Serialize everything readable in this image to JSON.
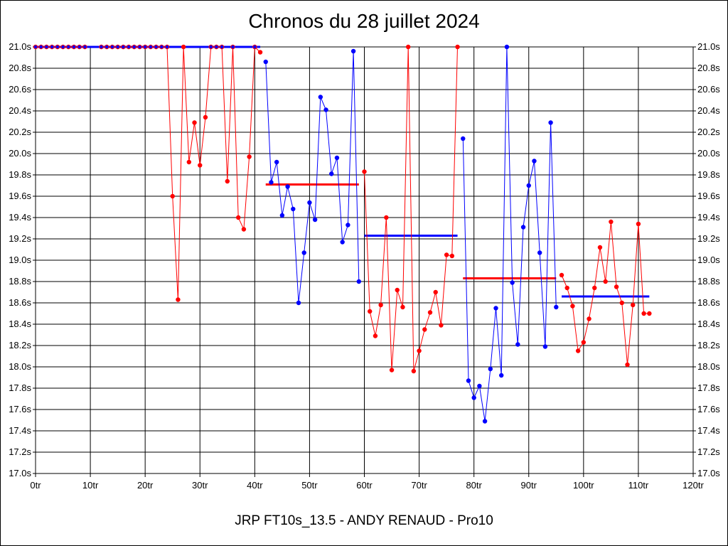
{
  "title": "Chronos du 28 juillet 2024",
  "subtitle": "JRP FT10s_13.5 - ANDY RENAUD - Pro10",
  "colors": {
    "series_a": "#ff0000",
    "series_b": "#0000ff",
    "grid": "#000000",
    "background": "#ffffff"
  },
  "chart_data": {
    "type": "line",
    "xlim": [
      0,
      120
    ],
    "ylim": [
      17.0,
      21.0
    ],
    "grid": true,
    "x_ticks": [
      0,
      10,
      20,
      30,
      40,
      50,
      60,
      70,
      80,
      90,
      100,
      110,
      120
    ],
    "x_tick_labels": [
      "0tr",
      "10tr",
      "20tr",
      "30tr",
      "40tr",
      "50tr",
      "60tr",
      "70tr",
      "80tr",
      "90tr",
      "100tr",
      "110tr",
      "120tr"
    ],
    "y_ticks": [
      17.0,
      17.2,
      17.4,
      17.6,
      17.8,
      18.0,
      18.2,
      18.4,
      18.6,
      18.8,
      19.0,
      19.2,
      19.4,
      19.6,
      19.8,
      20.0,
      20.2,
      20.4,
      20.6,
      20.8,
      21.0
    ],
    "y_tick_labels": [
      "17.0s",
      "17.2s",
      "17.4s",
      "17.6s",
      "17.8s",
      "18.0s",
      "18.2s",
      "18.4s",
      "18.6s",
      "18.8s",
      "19.0s",
      "19.2s",
      "19.4s",
      "19.6s",
      "19.8s",
      "20.0s",
      "20.2s",
      "20.4s",
      "20.6s",
      "20.8s",
      "21.0s"
    ],
    "series": [
      {
        "color": "#ff0000",
        "points": [
          [
            0,
            21.0
          ],
          [
            1,
            21.0
          ],
          [
            2,
            21.0
          ],
          [
            3,
            21.0
          ],
          [
            4,
            21.0
          ],
          [
            5,
            21.0
          ],
          [
            6,
            21.0
          ],
          [
            7,
            21.0
          ],
          [
            8,
            21.0
          ],
          [
            9,
            21.0
          ]
        ]
      },
      {
        "color": "#ff0000",
        "points": [
          [
            12,
            21.0
          ],
          [
            13,
            21.0
          ],
          [
            14,
            21.0
          ],
          [
            15,
            21.0
          ],
          [
            16,
            21.0
          ],
          [
            17,
            21.0
          ],
          [
            18,
            21.0
          ],
          [
            19,
            21.0
          ],
          [
            20,
            21.0
          ],
          [
            21,
            21.0
          ],
          [
            22,
            21.0
          ],
          [
            23,
            21.0
          ],
          [
            24,
            21.0
          ],
          [
            25,
            19.6
          ],
          [
            26,
            18.63
          ],
          [
            27,
            21.0
          ],
          [
            28,
            19.92
          ],
          [
            29,
            20.29
          ],
          [
            30,
            19.89
          ],
          [
            31,
            20.34
          ],
          [
            32,
            21.0
          ],
          [
            33,
            21.0
          ],
          [
            34,
            21.0
          ],
          [
            35,
            19.74
          ],
          [
            36,
            21.0
          ],
          [
            37,
            19.4
          ],
          [
            38,
            19.29
          ],
          [
            39,
            19.97
          ],
          [
            40,
            21.0
          ],
          [
            41,
            20.95
          ]
        ]
      },
      {
        "color": "#0000ff",
        "points": [
          [
            42,
            20.86
          ],
          [
            43,
            19.73
          ],
          [
            44,
            19.92
          ],
          [
            45,
            19.42
          ],
          [
            46,
            19.69
          ],
          [
            47,
            19.48
          ],
          [
            48,
            18.6
          ],
          [
            49,
            19.07
          ],
          [
            50,
            19.54
          ],
          [
            51,
            19.38
          ],
          [
            52,
            20.53
          ],
          [
            53,
            20.41
          ],
          [
            54,
            19.81
          ],
          [
            55,
            19.96
          ],
          [
            56,
            19.17
          ],
          [
            57,
            19.33
          ],
          [
            58,
            20.96
          ],
          [
            59,
            18.8
          ]
        ]
      },
      {
        "color": "#ff0000",
        "points": [
          [
            60,
            19.83
          ],
          [
            61,
            18.52
          ],
          [
            62,
            18.29
          ],
          [
            63,
            18.58
          ],
          [
            64,
            19.4
          ],
          [
            65,
            17.97
          ],
          [
            66,
            18.72
          ],
          [
            67,
            18.56
          ],
          [
            68,
            21.0
          ],
          [
            69,
            17.96
          ],
          [
            70,
            18.15
          ],
          [
            71,
            18.35
          ],
          [
            72,
            18.51
          ],
          [
            73,
            18.7
          ],
          [
            74,
            18.39
          ],
          [
            75,
            19.05
          ],
          [
            76,
            19.04
          ],
          [
            77,
            21.0
          ]
        ]
      },
      {
        "color": "#0000ff",
        "points": [
          [
            78,
            20.14
          ],
          [
            79,
            17.87
          ],
          [
            80,
            17.71
          ],
          [
            81,
            17.82
          ],
          [
            82,
            17.49
          ],
          [
            83,
            17.98
          ],
          [
            84,
            18.55
          ],
          [
            85,
            17.92
          ],
          [
            86,
            21.0
          ],
          [
            87,
            18.79
          ],
          [
            88,
            18.21
          ],
          [
            89,
            19.31
          ],
          [
            90,
            19.7
          ],
          [
            91,
            19.93
          ],
          [
            92,
            19.07
          ],
          [
            93,
            18.19
          ],
          [
            94,
            20.29
          ],
          [
            95,
            18.56
          ]
        ]
      },
      {
        "color": "#ff0000",
        "points": [
          [
            96,
            18.86
          ],
          [
            97,
            18.74
          ],
          [
            98,
            18.57
          ],
          [
            99,
            18.15
          ],
          [
            100,
            18.23
          ],
          [
            101,
            18.45
          ],
          [
            102,
            18.74
          ],
          [
            103,
            19.12
          ],
          [
            104,
            18.8
          ],
          [
            105,
            19.36
          ],
          [
            106,
            18.75
          ],
          [
            107,
            18.6
          ],
          [
            108,
            18.02
          ],
          [
            109,
            18.58
          ],
          [
            110,
            19.34
          ],
          [
            111,
            18.5
          ],
          [
            112,
            18.5
          ]
        ]
      }
    ],
    "blue_markers_on_first_segment": [
      0,
      1,
      2,
      3,
      4,
      5,
      6,
      7,
      8,
      9,
      12,
      13,
      14,
      15,
      16,
      17,
      18,
      19,
      20,
      21,
      22,
      23,
      24,
      32,
      33,
      34,
      36,
      40
    ],
    "averages": [
      {
        "color": "#0000ff",
        "x": [
          0,
          41
        ],
        "y": 21.0
      },
      {
        "color": "#ff0000",
        "x": [
          42,
          59
        ],
        "y": 19.71
      },
      {
        "color": "#0000ff",
        "x": [
          60,
          77
        ],
        "y": 19.23
      },
      {
        "color": "#ff0000",
        "x": [
          78,
          95
        ],
        "y": 18.83
      },
      {
        "color": "#0000ff",
        "x": [
          96,
          112
        ],
        "y": 18.66
      }
    ]
  }
}
